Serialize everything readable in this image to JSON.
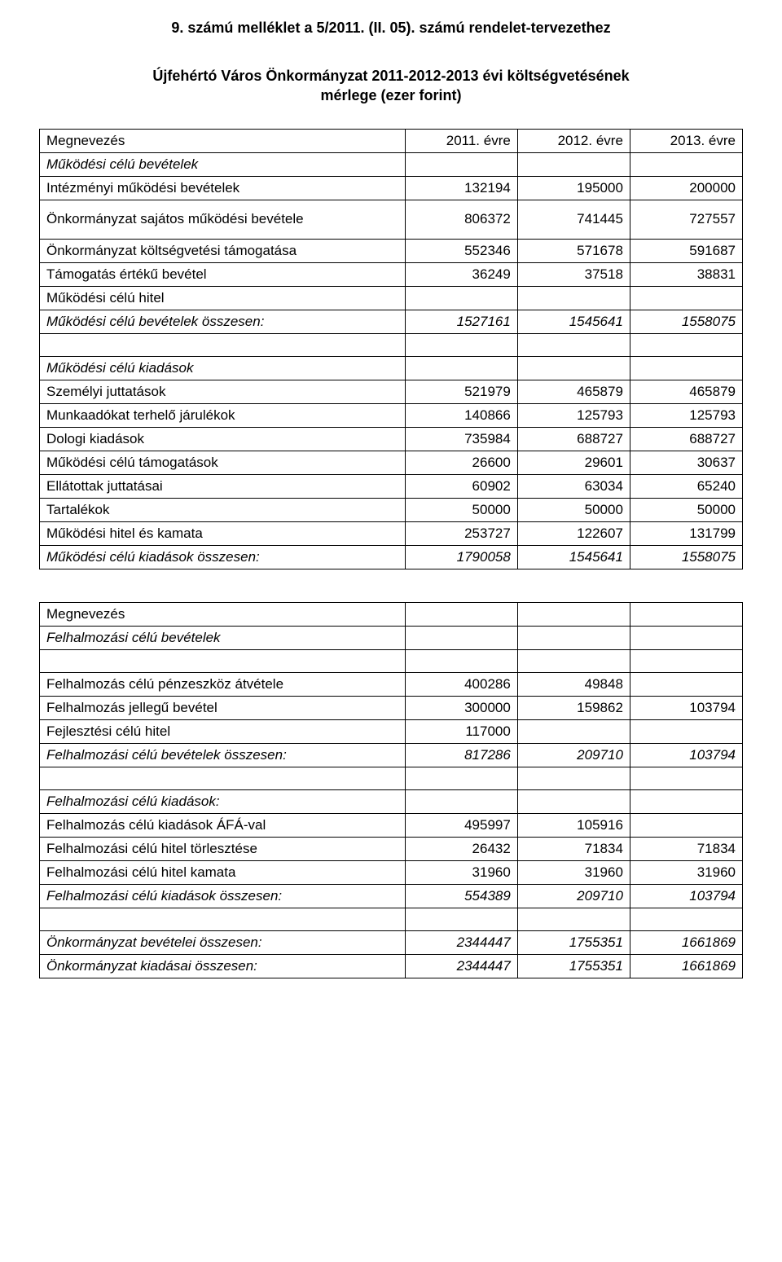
{
  "header": "9. számú melléklet a 5/2011. (II. 05). számú rendelet-tervezethez",
  "title_line1": "Újfehértó Város Önkormányzat 2011-2012-2013 évi költségvetésének",
  "title_line2": "mérlege (ezer forint)",
  "columns": {
    "label": "Megnevezés",
    "c1": "2011. évre",
    "c2": "2012. évre",
    "c3": "2013. évre"
  },
  "table1": [
    {
      "label": "Megnevezés",
      "c1": "2011. évre",
      "c2": "2012. évre",
      "c3": "2013. évre",
      "italic": false
    },
    {
      "label": "Működési célú bevételek",
      "c1": "",
      "c2": "",
      "c3": "",
      "italic": true
    },
    {
      "label": "Intézményi működési bevételek",
      "c1": "132194",
      "c2": "195000",
      "c3": "200000",
      "italic": false
    },
    {
      "label": "Önkormányzat sajátos működési bevétele",
      "c1": "806372",
      "c2": "741445",
      "c3": "727557",
      "italic": false,
      "twoLine": true
    },
    {
      "label": "Önkormányzat költségvetési támogatása",
      "c1": "552346",
      "c2": "571678",
      "c3": "591687",
      "italic": false
    },
    {
      "label": "Támogatás értékű bevétel",
      "c1": "36249",
      "c2": "37518",
      "c3": "38831",
      "italic": false
    },
    {
      "label": "Működési célú hitel",
      "c1": "",
      "c2": "",
      "c3": "",
      "italic": false
    },
    {
      "label": "Működési célú bevételek összesen:",
      "c1": "1527161",
      "c2": "1545641",
      "c3": "1558075",
      "italic": true
    },
    {
      "label": "",
      "c1": "",
      "c2": "",
      "c3": "",
      "italic": false
    },
    {
      "label": "Működési célú kiadások",
      "c1": "",
      "c2": "",
      "c3": "",
      "italic": true
    },
    {
      "label": "Személyi juttatások",
      "c1": "521979",
      "c2": "465879",
      "c3": "465879",
      "italic": false
    },
    {
      "label": "Munkaadókat terhelő járulékok",
      "c1": "140866",
      "c2": "125793",
      "c3": "125793",
      "italic": false
    },
    {
      "label": "Dologi kiadások",
      "c1": "735984",
      "c2": "688727",
      "c3": "688727",
      "italic": false
    },
    {
      "label": "Működési célú támogatások",
      "c1": "26600",
      "c2": "29601",
      "c3": "30637",
      "italic": false
    },
    {
      "label": "Ellátottak juttatásai",
      "c1": "60902",
      "c2": "63034",
      "c3": "65240",
      "italic": false
    },
    {
      "label": "Tartalékok",
      "c1": "50000",
      "c2": "50000",
      "c3": "50000",
      "italic": false
    },
    {
      "label": "Működési hitel és kamata",
      "c1": "253727",
      "c2": "122607",
      "c3": "131799",
      "italic": false
    },
    {
      "label": "Működési célú kiadások összesen:",
      "c1": "1790058",
      "c2": "1545641",
      "c3": "1558075",
      "italic": true
    }
  ],
  "table2": [
    {
      "label": "Megnevezés",
      "c1": "",
      "c2": "",
      "c3": "",
      "italic": false
    },
    {
      "label": "Felhalmozási célú bevételek",
      "c1": "",
      "c2": "",
      "c3": "",
      "italic": true
    },
    {
      "label": "",
      "c1": "",
      "c2": "",
      "c3": "",
      "italic": false
    },
    {
      "label": "Felhalmozás célú pénzeszköz átvétele",
      "c1": "400286",
      "c2": "49848",
      "c3": "",
      "italic": false
    },
    {
      "label": "Felhalmozás jellegű bevétel",
      "c1": "300000",
      "c2": "159862",
      "c3": "103794",
      "italic": false
    },
    {
      "label": "Fejlesztési célú hitel",
      "c1": "117000",
      "c2": "",
      "c3": "",
      "italic": false
    },
    {
      "label": "Felhalmozási célú bevételek összesen:",
      "c1": "817286",
      "c2": "209710",
      "c3": "103794",
      "italic": true
    },
    {
      "label": "",
      "c1": "",
      "c2": "",
      "c3": "",
      "italic": false
    },
    {
      "label": "Felhalmozási célú kiadások:",
      "c1": "",
      "c2": "",
      "c3": "",
      "italic": true
    },
    {
      "label": "Felhalmozás célú kiadások ÁFÁ-val",
      "c1": "495997",
      "c2": "105916",
      "c3": "",
      "italic": false
    },
    {
      "label": "Felhalmozási célú hitel törlesztése",
      "c1": "26432",
      "c2": "71834",
      "c3": "71834",
      "italic": false
    },
    {
      "label": "Felhalmozási célú hitel kamata",
      "c1": "31960",
      "c2": "31960",
      "c3": "31960",
      "italic": false
    },
    {
      "label": "Felhalmozási célú kiadások összesen:",
      "c1": "554389",
      "c2": "209710",
      "c3": "103794",
      "italic": true
    },
    {
      "label": "",
      "c1": "",
      "c2": "",
      "c3": "",
      "italic": false
    },
    {
      "label": "Önkormányzat bevételei összesen:",
      "c1": "2344447",
      "c2": "1755351",
      "c3": "1661869",
      "italic": true
    },
    {
      "label": "Önkormányzat kiadásai összesen:",
      "c1": "2344447",
      "c2": "1755351",
      "c3": "1661869",
      "italic": true
    }
  ]
}
